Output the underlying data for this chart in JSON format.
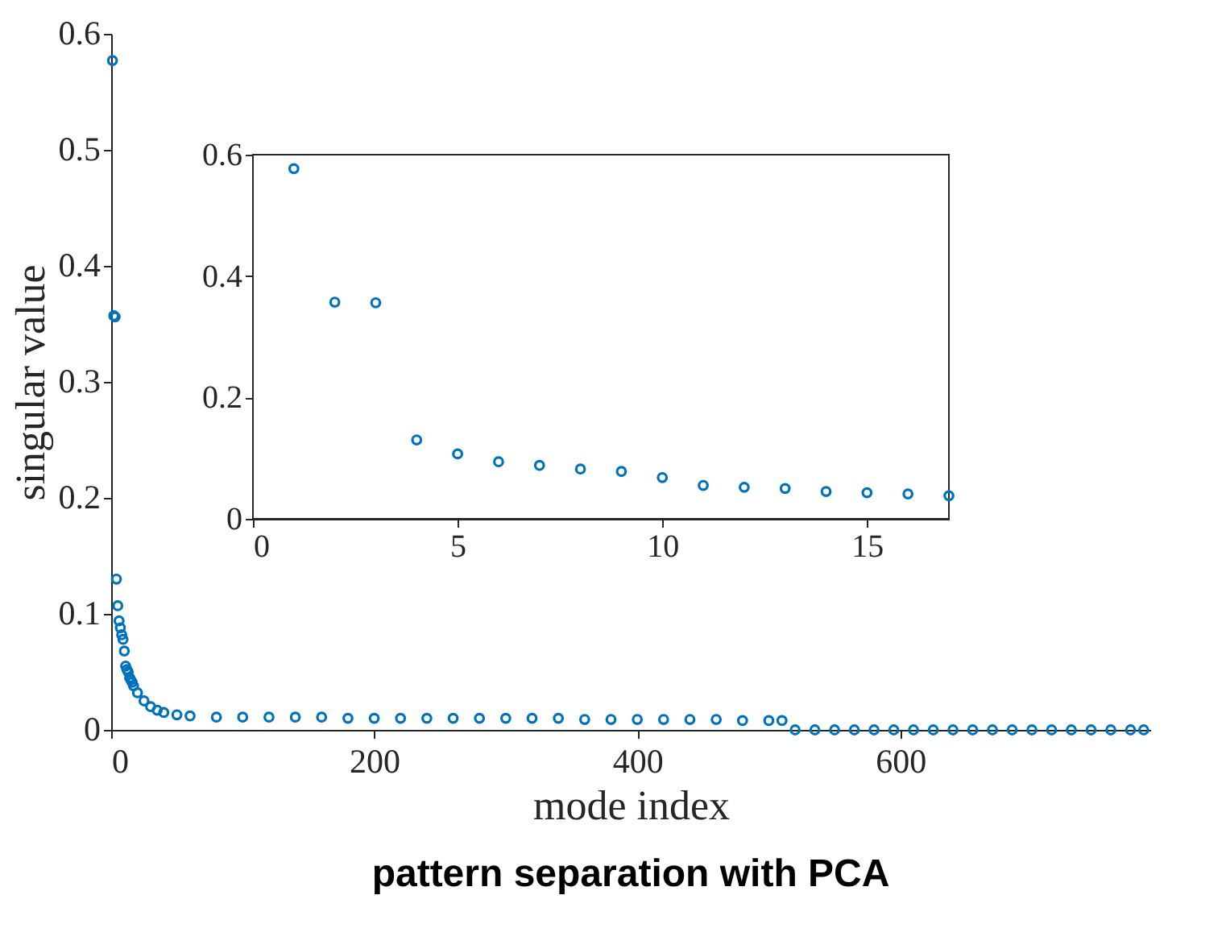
{
  "chart_data": [
    {
      "type": "scatter",
      "title": "pattern separation with PCA",
      "xlabel": "mode index",
      "ylabel": "singular value",
      "marker": "circle",
      "grid": false,
      "xlim": [
        0,
        790
      ],
      "xticks": [
        0,
        200,
        400,
        600
      ],
      "ylim": [
        0,
        0.6
      ],
      "yticks": [
        0,
        0.1,
        0.2,
        0.3,
        0.4,
        0.5,
        0.6
      ],
      "series": [
        {
          "color": "#0072bd",
          "x": [
            1,
            2,
            3,
            4,
            5,
            6,
            7,
            8,
            9,
            10,
            11,
            12,
            13,
            14,
            15,
            16,
            17,
            20,
            25,
            30,
            35,
            40,
            50,
            60,
            80,
            100,
            120,
            140,
            160,
            180,
            200,
            220,
            240,
            260,
            280,
            300,
            320,
            340,
            360,
            380,
            400,
            420,
            440,
            460,
            480,
            500,
            510,
            520,
            535,
            550,
            565,
            580,
            595,
            610,
            625,
            640,
            655,
            670,
            685,
            700,
            715,
            730,
            745,
            760,
            775,
            785
          ],
          "values": [
            0.577,
            0.357,
            0.356,
            0.13,
            0.107,
            0.094,
            0.088,
            0.082,
            0.078,
            0.068,
            0.055,
            0.052,
            0.05,
            0.045,
            0.043,
            0.041,
            0.038,
            0.032,
            0.025,
            0.02,
            0.017,
            0.015,
            0.013,
            0.012,
            0.011,
            0.011,
            0.011,
            0.011,
            0.011,
            0.01,
            0.01,
            0.01,
            0.01,
            0.01,
            0.01,
            0.01,
            0.01,
            0.01,
            0.009,
            0.009,
            0.009,
            0.009,
            0.009,
            0.009,
            0.008,
            0.008,
            0.008,
            0,
            0,
            0,
            0,
            0,
            0,
            0,
            0,
            0,
            0,
            0,
            0,
            0,
            0,
            0,
            0,
            0,
            0,
            0
          ]
        }
      ]
    },
    {
      "type": "scatter",
      "marker": "circle",
      "grid": false,
      "xlim": [
        0,
        17
      ],
      "xticks": [
        0,
        5,
        10,
        15
      ],
      "ylim": [
        0,
        0.6
      ],
      "yticks": [
        0,
        0.2,
        0.4,
        0.6
      ],
      "series": [
        {
          "color": "#0072bd",
          "x": [
            1,
            2,
            3,
            4,
            5,
            6,
            7,
            8,
            9,
            10,
            11,
            12,
            13,
            14,
            15,
            16,
            17
          ],
          "values": [
            0.577,
            0.357,
            0.356,
            0.13,
            0.107,
            0.094,
            0.088,
            0.082,
            0.078,
            0.068,
            0.055,
            0.052,
            0.05,
            0.045,
            0.043,
            0.041,
            0.038
          ]
        }
      ]
    }
  ]
}
